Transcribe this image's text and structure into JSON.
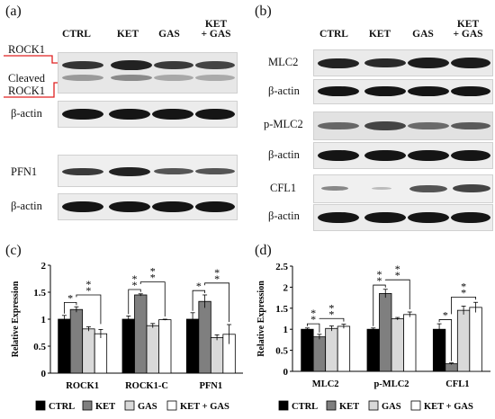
{
  "panel_a": {
    "label": "(a)",
    "columns": [
      "CTRL",
      "KET",
      "GAS",
      "KET\n+ GAS"
    ],
    "rows": [
      {
        "label": "ROCK1"
      },
      {
        "label": "Cleaved\nROCK1"
      },
      {
        "label": "β-actin"
      },
      {
        "label": "PFN1"
      },
      {
        "label": "β-actin"
      }
    ]
  },
  "panel_b": {
    "label": "(b)",
    "columns": [
      "CTRL",
      "KET",
      "GAS",
      "KET\n+ GAS"
    ],
    "rows": [
      {
        "label": "MLC2"
      },
      {
        "label": "β-actin"
      },
      {
        "label": "p-MLC2"
      },
      {
        "label": "β-actin"
      },
      {
        "label": "CFL1"
      },
      {
        "label": "β-actin"
      }
    ]
  },
  "chart_data": [
    {
      "panel": "(c)",
      "type": "bar",
      "ylabel": "Relative Expression",
      "ylim": [
        0,
        2
      ],
      "yticks": [
        "0",
        "0.5",
        "1",
        "1.5",
        "2"
      ],
      "categories": [
        "ROCK1",
        "ROCK1-C",
        "PFN1"
      ],
      "series": [
        {
          "name": "CTRL",
          "color": "#000000",
          "values": [
            1.0,
            1.0,
            1.0
          ],
          "errors": [
            0.07,
            0.06,
            0.12
          ]
        },
        {
          "name": "KET",
          "color": "#7f7f7f",
          "values": [
            1.18,
            1.45,
            1.33
          ],
          "errors": [
            0.05,
            0.02,
            0.12
          ]
        },
        {
          "name": "GAS",
          "color": "#d9d9d9",
          "values": [
            0.82,
            0.88,
            0.66
          ],
          "errors": [
            0.04,
            0.04,
            0.05
          ]
        },
        {
          "name": "KET + GAS",
          "color": "#ffffff",
          "values": [
            0.73,
            0.99,
            0.72
          ],
          "errors": [
            0.08,
            0.01,
            0.18
          ]
        }
      ],
      "significance": [
        "*",
        "**",
        "**",
        "**",
        "*",
        "**"
      ]
    },
    {
      "panel": "(d)",
      "type": "bar",
      "ylabel": "Relative Expression",
      "ylim": [
        0,
        2.5
      ],
      "yticks": [
        "0",
        "0.5",
        "1",
        "1.5",
        "2",
        "2.5"
      ],
      "categories": [
        "MLC2",
        "p-MLC2",
        "CFL1"
      ],
      "series": [
        {
          "name": "CTRL",
          "color": "#000000",
          "values": [
            1.0,
            1.0,
            1.0
          ],
          "errors": [
            0.03,
            0.03,
            0.13
          ]
        },
        {
          "name": "KET",
          "color": "#7f7f7f",
          "values": [
            0.82,
            1.85,
            0.18
          ],
          "errors": [
            0.06,
            0.1,
            0.02
          ]
        },
        {
          "name": "GAS",
          "color": "#d9d9d9",
          "values": [
            1.02,
            1.25,
            1.45
          ],
          "errors": [
            0.06,
            0.03,
            0.1
          ]
        },
        {
          "name": "KET + GAS",
          "color": "#ffffff",
          "values": [
            1.07,
            1.35,
            1.52
          ],
          "errors": [
            0.05,
            0.06,
            0.12
          ]
        }
      ],
      "significance": [
        "**",
        "**",
        "**",
        "**",
        "*",
        "**"
      ]
    }
  ]
}
